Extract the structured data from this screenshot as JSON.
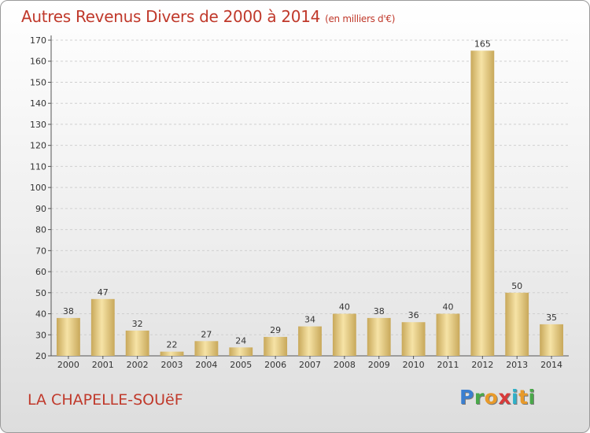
{
  "title": "Autres Revenus Divers de 2000 à 2014",
  "subtitle": "(en milliers d'€)",
  "commune": "LA CHAPELLE-SOUëF",
  "logo": {
    "letters": [
      {
        "char": "P",
        "color": "#3a7fd0"
      },
      {
        "char": "r",
        "color": "#4aa84a"
      },
      {
        "char": "o",
        "color": "#e89a2a"
      },
      {
        "char": "x",
        "color": "#d83a3a"
      },
      {
        "char": "i",
        "color": "#2fb0c8"
      },
      {
        "char": "t",
        "color": "#e89a2a"
      },
      {
        "char": "i",
        "color": "#4aa84a"
      }
    ]
  },
  "colors": {
    "title": "#c0392b",
    "bar_light": "#f6e3a6",
    "bar_dark": "#c8a85a",
    "grid": "#cfcfcf"
  },
  "chart_data": {
    "type": "bar",
    "categories": [
      "2000",
      "2001",
      "2002",
      "2003",
      "2004",
      "2005",
      "2006",
      "2007",
      "2008",
      "2009",
      "2010",
      "2011",
      "2012",
      "2013",
      "2014"
    ],
    "values": [
      38,
      47,
      32,
      22,
      27,
      24,
      29,
      34,
      40,
      38,
      36,
      40,
      165,
      50,
      35
    ],
    "ylim": [
      20,
      170
    ],
    "yticks": [
      20,
      30,
      40,
      50,
      60,
      70,
      80,
      90,
      100,
      110,
      120,
      130,
      140,
      150,
      160,
      170
    ],
    "grid": true,
    "xlabel": "",
    "ylabel": ""
  }
}
